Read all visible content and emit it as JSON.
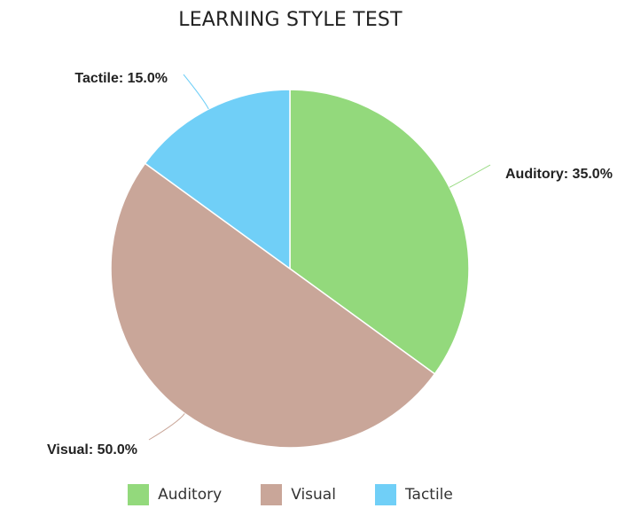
{
  "chart_data": {
    "type": "pie",
    "title": "LEARNING STYLE TEST",
    "slices": [
      {
        "name": "Auditory",
        "value": 35.0,
        "label": "Auditory: 35.0%",
        "color": "#93d97c"
      },
      {
        "name": "Visual",
        "value": 50.0,
        "label": "Visual: 50.0%",
        "color": "#c9a699"
      },
      {
        "name": "Tactile",
        "value": 15.0,
        "label": "Tactile: 15.0%",
        "color": "#70cff7"
      }
    ],
    "legend_position": "bottom",
    "start_angle": "12 o'clock",
    "direction": "clockwise"
  }
}
